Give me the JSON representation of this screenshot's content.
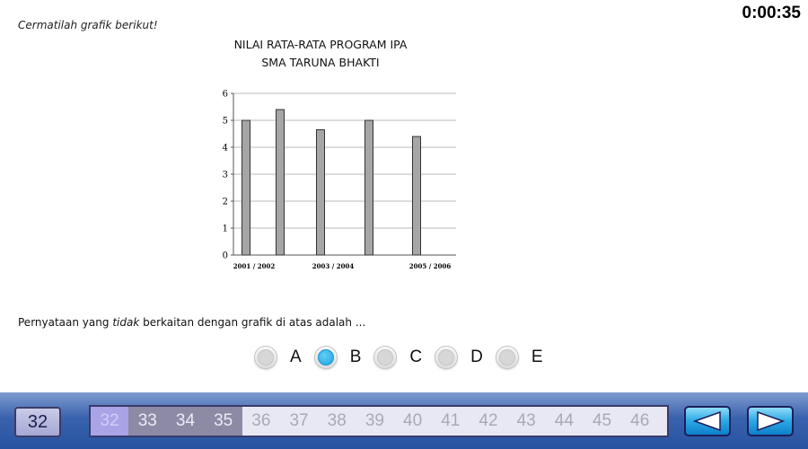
{
  "timer": "0:00:35",
  "instruction": "Cermatilah grafik berikut!",
  "chart_data": {
    "type": "bar",
    "title": "NILAI RATA-RATA PROGRAM IPA",
    "subtitle": "SMA TARUNA BHAKTI",
    "x_tick_labels": [
      "2001 / 2002",
      "2003 / 2004",
      "2005 / 2006"
    ],
    "values": [
      5.0,
      5.4,
      4.65,
      5.0,
      4.4
    ],
    "ylim": [
      0,
      6
    ],
    "y_ticks": [
      "0",
      "1",
      "2",
      "3",
      "4",
      "5",
      "6"
    ],
    "grid": true,
    "bar_color": "#a6a6a6"
  },
  "question": {
    "before": "Pernyataan yang ",
    "emphasis": "tidak",
    "after": " berkaitan dengan grafik di atas adalah ..."
  },
  "options": [
    {
      "label": "A",
      "selected": false
    },
    {
      "label": "B",
      "selected": true
    },
    {
      "label": "C",
      "selected": false
    },
    {
      "label": "D",
      "selected": false
    },
    {
      "label": "E",
      "selected": false
    }
  ],
  "navigation": {
    "current_question": "32",
    "question_numbers": [
      "32",
      "33",
      "34",
      "35",
      "36",
      "37",
      "38",
      "39",
      "40",
      "41",
      "42",
      "43",
      "44",
      "45",
      "46"
    ],
    "active": "32",
    "answered": [
      "33",
      "34",
      "35"
    ],
    "prev_icon": "left-arrow-icon",
    "next_icon": "right-arrow-icon"
  }
}
